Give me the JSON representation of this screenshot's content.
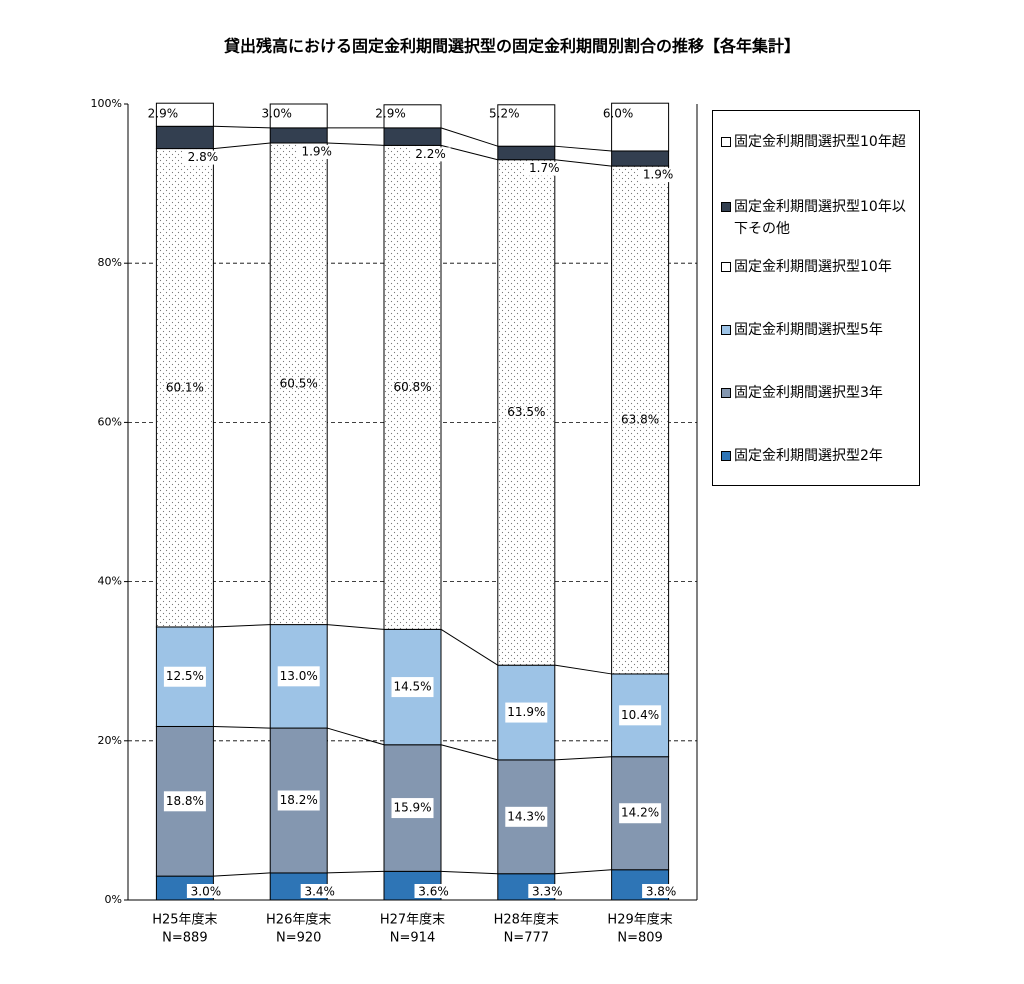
{
  "chart_data": {
    "type": "stacked-bar",
    "title": "貸出残高における固定金利期間選択型の固定金利期間別割合の推移【各年集計】",
    "categories": [
      "H25年度末",
      "H26年度末",
      "H27年度末",
      "H28年度末",
      "H29年度末"
    ],
    "sample_sizes": [
      "N=889",
      "N=920",
      "N=914",
      "N=777",
      "N=809"
    ],
    "ylim": [
      0,
      100
    ],
    "yticks": [
      {
        "value": 0,
        "label": "0%"
      },
      {
        "value": 20,
        "label": "20%"
      },
      {
        "value": 40,
        "label": "40%"
      },
      {
        "value": 60,
        "label": "60%"
      },
      {
        "value": 80,
        "label": "80%"
      },
      {
        "value": 100,
        "label": "100%"
      }
    ],
    "grid": true,
    "series": [
      {
        "name": "固定金利期間選択型2年",
        "color": "#2e75b6",
        "values": [
          3.0,
          3.4,
          3.6,
          3.3,
          3.8
        ],
        "value_labels": [
          "3.0%",
          "3.4%",
          "3.6%",
          "3.3%",
          "3.8%"
        ]
      },
      {
        "name": "固定金利期間選択型3年",
        "color": "#8497b0",
        "values": [
          18.8,
          18.2,
          15.9,
          14.3,
          14.2
        ],
        "value_labels": [
          "18.8%",
          "18.2%",
          "15.9%",
          "14.3%",
          "14.2%"
        ]
      },
      {
        "name": "固定金利期間選択型5年",
        "color": "#9dc3e6",
        "values": [
          12.5,
          13.0,
          14.5,
          11.9,
          10.4
        ],
        "value_labels": [
          "12.5%",
          "13.0%",
          "14.5%",
          "11.9%",
          "10.4%"
        ]
      },
      {
        "name": "固定金利期間選択型10年",
        "color": "#ffffff",
        "fill_pattern": "dots",
        "values": [
          60.1,
          60.5,
          60.8,
          63.5,
          63.8
        ],
        "value_labels": [
          "60.1%",
          "60.5%",
          "60.8%",
          "63.5%",
          "63.8%"
        ]
      },
      {
        "name": "固定金利期間選択型10年以下その他",
        "color": "#333f50",
        "values": [
          2.8,
          1.9,
          2.2,
          1.7,
          1.9
        ],
        "value_labels": [
          "2.8%",
          "1.9%",
          "2.2%",
          "1.7%",
          "1.9%"
        ]
      },
      {
        "name": "固定金利期間選択型10年超",
        "color": "#ffffff",
        "values": [
          2.9,
          3.0,
          2.9,
          5.2,
          6.0
        ],
        "value_labels": [
          "2.9%",
          "3.0%",
          "2.9%",
          "5.2%",
          "6.0%"
        ]
      }
    ]
  }
}
